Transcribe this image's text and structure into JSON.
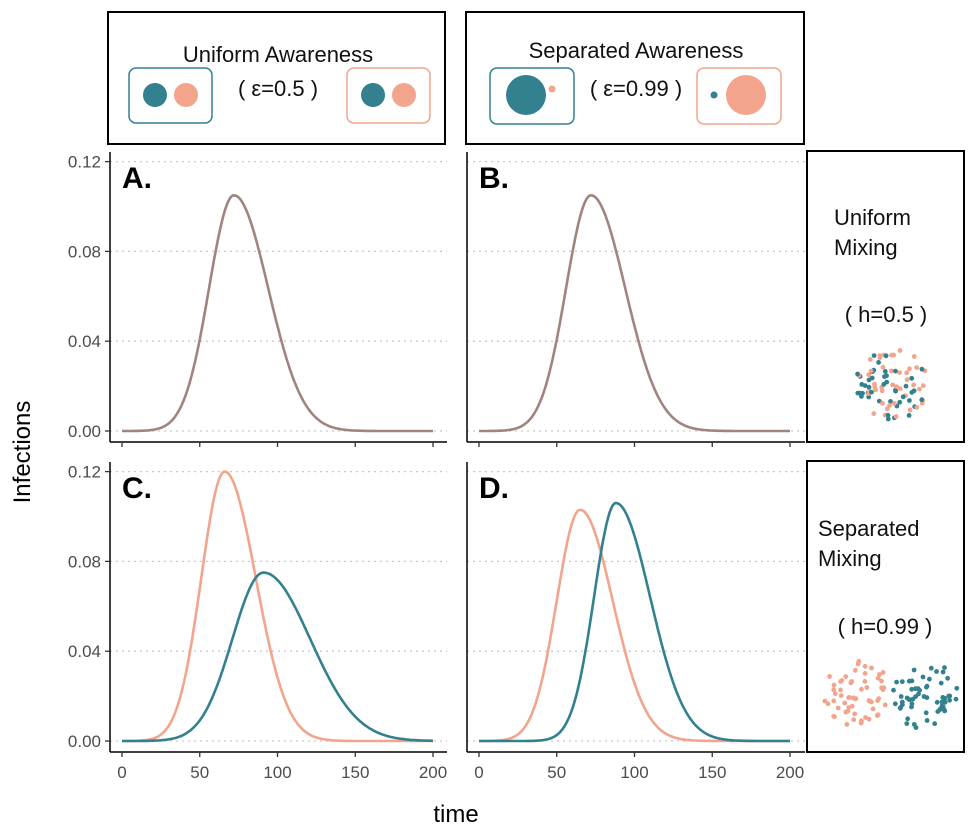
{
  "header": {
    "left": {
      "title": "Uniform Awareness",
      "param": "( ε=0.5 )"
    },
    "right": {
      "title": "Separated Awareness",
      "param": "( ε=0.99 )"
    }
  },
  "side": {
    "top": {
      "line1": "Uniform",
      "line2": "Mixing",
      "param": "( h=0.5 )"
    },
    "bottom": {
      "line1": "Separated",
      "line2": "Mixing",
      "param": "( h=0.99 )"
    }
  },
  "axes": {
    "ylabel": "Infections",
    "xlabel": "time",
    "xticks": [
      "0",
      "50",
      "100",
      "150",
      "200"
    ],
    "yticks": [
      "0.00",
      "0.04",
      "0.08",
      "0.12"
    ]
  },
  "colors": {
    "teal": "#33808f",
    "salmon": "#f2a48c",
    "overlap": "#a0857e"
  },
  "chart_data": [
    {
      "type": "line",
      "panel": "A.",
      "xlim": [
        0,
        200
      ],
      "ylim": [
        0,
        0.12
      ],
      "grid": "horizontal dotted",
      "series": [
        {
          "color": "#33808f",
          "peak_time": 72,
          "peak_value": 0.105,
          "sigma_left": 16,
          "sigma_right": 22
        },
        {
          "color": "#f2a48c",
          "peak_time": 72,
          "peak_value": 0.105,
          "sigma_left": 16,
          "sigma_right": 22
        }
      ]
    },
    {
      "type": "line",
      "panel": "B.",
      "xlim": [
        0,
        200
      ],
      "ylim": [
        0,
        0.12
      ],
      "grid": "horizontal dotted",
      "series": [
        {
          "color": "#33808f",
          "peak_time": 72,
          "peak_value": 0.105,
          "sigma_left": 16,
          "sigma_right": 22
        },
        {
          "color": "#f2a48c",
          "peak_time": 72,
          "peak_value": 0.105,
          "sigma_left": 16,
          "sigma_right": 22
        }
      ]
    },
    {
      "type": "line",
      "panel": "C.",
      "xlim": [
        0,
        200
      ],
      "ylim": [
        0,
        0.12
      ],
      "grid": "horizontal dotted",
      "series": [
        {
          "color": "#f2a48c",
          "peak_time": 66,
          "peak_value": 0.12,
          "sigma_left": 15,
          "sigma_right": 20
        },
        {
          "color": "#33808f",
          "peak_time": 91,
          "peak_value": 0.075,
          "sigma_left": 20,
          "sigma_right": 30
        }
      ]
    },
    {
      "type": "line",
      "panel": "D.",
      "xlim": [
        0,
        200
      ],
      "ylim": [
        0,
        0.12
      ],
      "grid": "horizontal dotted",
      "series": [
        {
          "color": "#f2a48c",
          "peak_time": 65,
          "peak_value": 0.103,
          "sigma_left": 15,
          "sigma_right": 21
        },
        {
          "color": "#33808f",
          "peak_time": 88,
          "peak_value": 0.106,
          "sigma_left": 14,
          "sigma_right": 22
        }
      ]
    }
  ]
}
